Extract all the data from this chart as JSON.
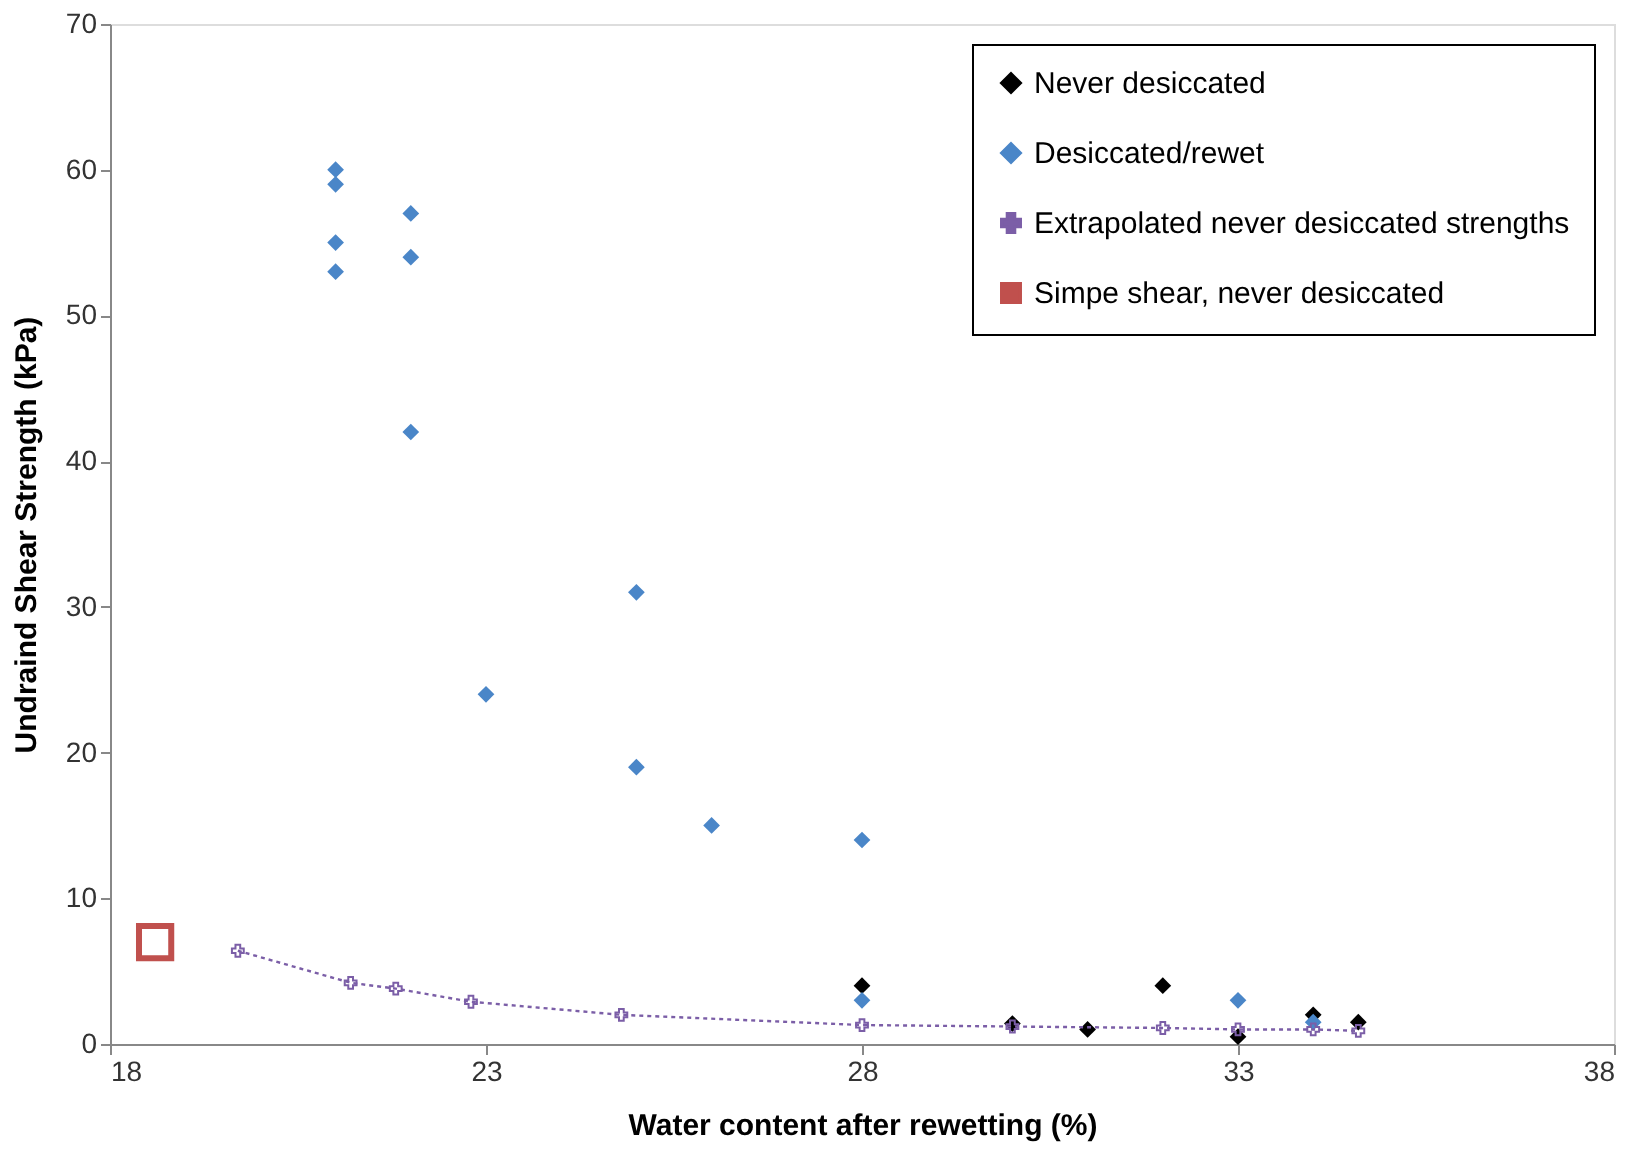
{
  "chart_data": {
    "type": "scatter",
    "xlabel": "Water content  after rewetting (%)",
    "ylabel": "Undraind Shear Strength (kPa)",
    "xlim": [
      18,
      38
    ],
    "xticks": [
      18,
      23,
      28,
      33,
      38
    ],
    "ylim": [
      0,
      70
    ],
    "yticks": [
      0,
      10,
      20,
      30,
      40,
      50,
      60,
      70
    ],
    "grid": false,
    "legend": "top right",
    "series": [
      {
        "name": "Never desiccated",
        "marker": "diamond",
        "color": "#000000",
        "x": [
          28,
          30,
          31,
          32,
          33,
          34,
          34.6
        ],
        "values": [
          4,
          1.4,
          1,
          4,
          0.5,
          2,
          1.5
        ]
      },
      {
        "name": "Desiccated/rewet",
        "marker": "diamond",
        "color": "#4a86c8",
        "x": [
          21,
          21,
          21,
          21,
          22,
          22,
          22,
          23,
          25,
          25,
          26,
          28,
          28,
          33,
          34
        ],
        "values": [
          60,
          59,
          55,
          53,
          57,
          54,
          42,
          24,
          31,
          19,
          15,
          14,
          3,
          3,
          1.5
        ]
      },
      {
        "name": "Extrapolated never desiccated strengths",
        "type": "line",
        "marker": "cross",
        "line_style": "dotted",
        "color": "#7b5ea7",
        "x": [
          19.7,
          21.2,
          21.8,
          22.8,
          24.8,
          28,
          30,
          32,
          33,
          34,
          34.6
        ],
        "values": [
          6.4,
          4.2,
          3.8,
          2.9,
          2,
          1.3,
          1.2,
          1.1,
          1,
          1,
          0.9
        ]
      },
      {
        "name": "Simpe shear, never desiccated",
        "marker": "square",
        "color": "#c0504d",
        "x": [
          18.6
        ],
        "values": [
          7
        ]
      }
    ]
  }
}
